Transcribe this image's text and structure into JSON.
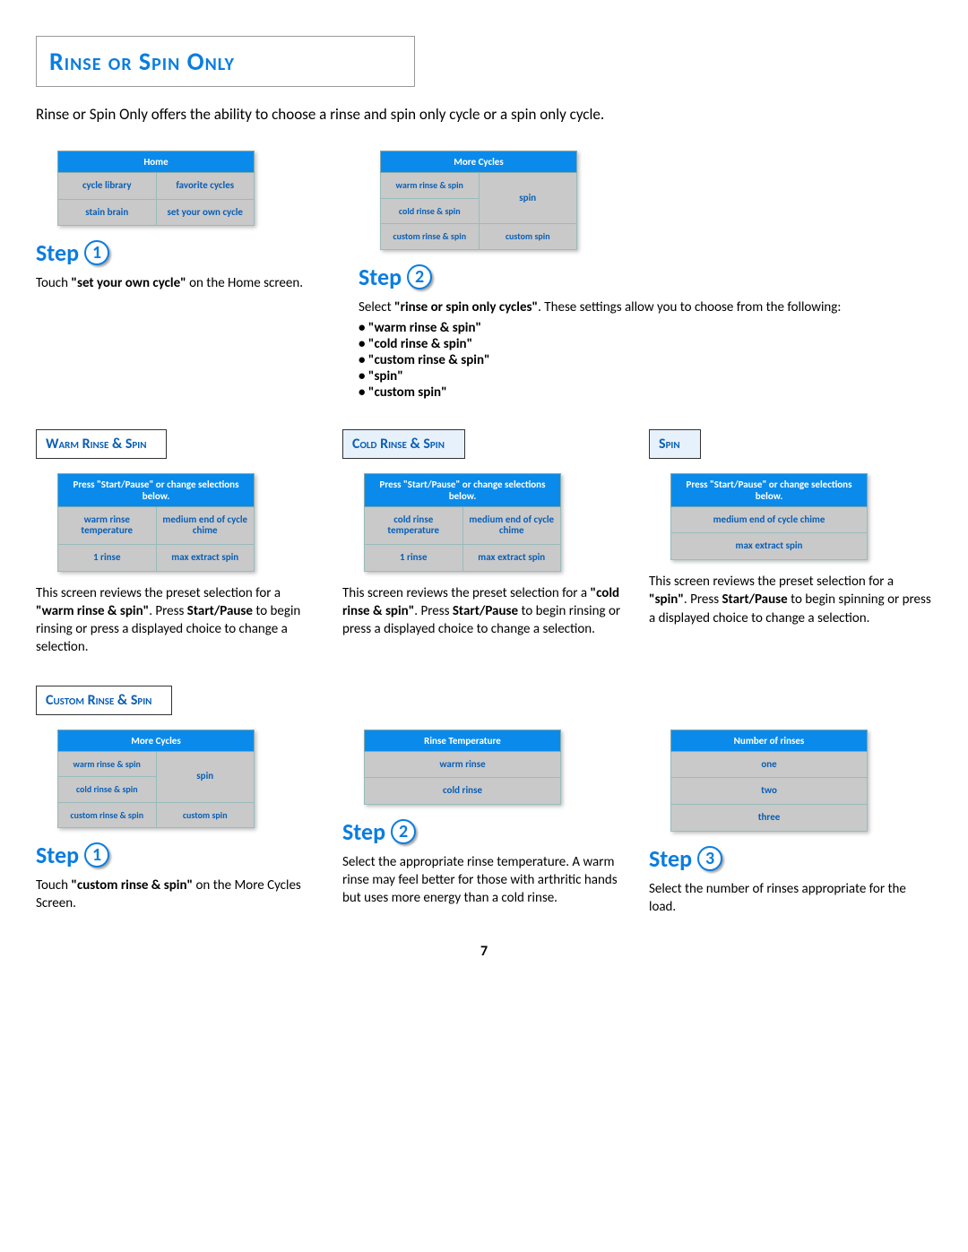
{
  "page": {
    "title": "Rinse or Spin Only",
    "intro": "Rinse or Spin Only offers the ability to choose a rinse and spin only cycle or a spin only cycle.",
    "pageNumber": "7"
  },
  "topPanels": {
    "home": {
      "header": "Home",
      "cells": [
        "cycle library",
        "favorite cycles",
        "stain brain",
        "set your own cycle"
      ]
    },
    "moreCycles": {
      "header": "More Cycles",
      "leftCells": [
        "warm rinse & spin",
        "cold rinse & spin",
        "custom rinse & spin"
      ],
      "rightCells": [
        "spin",
        "custom spin"
      ]
    }
  },
  "step1Top": {
    "label": "Step",
    "num": "1",
    "text_a": "Touch ",
    "text_b": "\"set your own cycle\"",
    "text_c": " on the Home screen."
  },
  "step2Top": {
    "label": "Step",
    "num": "2",
    "lead_a": "Select ",
    "lead_b": "\"rinse or spin only cycles\"",
    "lead_c": ".  These settings allow you to choose from the following:",
    "options": [
      "\"warm rinse & spin\"",
      "\"cold rinse & spin\"",
      "\"custom rinse & spin\"",
      " \"spin\"",
      "\"custom spin\""
    ]
  },
  "subHeads": {
    "warm": "Warm Rinse & Spin",
    "cold": "Cold Rinse & Spin",
    "spin": "Spin",
    "custom": "Custom Rinse & Spin"
  },
  "presetPanels": {
    "hint": "Press \"Start/Pause\" or change selections below.",
    "warm": {
      "r1a": "warm rinse temperature",
      "r1b": "medium end of cycle chime",
      "r2a": "1 rinse",
      "r2b": "max extract spin"
    },
    "cold": {
      "r1a": "cold rinse temperature",
      "r1b": "medium end of cycle chime",
      "r2a": "1 rinse",
      "r2b": "max extract spin"
    },
    "spin": {
      "r1": "medium end of cycle chime",
      "r2": "max extract spin"
    }
  },
  "presetText": {
    "warm": "This screen reviews the preset selection for a \"warm rinse & spin\". Press Start/Pause to begin rinsing or press a displayed choice to change a selection.",
    "cold": "This screen reviews the preset selection for a \"cold rinse & spin\".  Press Start/Pause to begin rinsing or press a displayed choice to change a selection.",
    "spin": "This screen reviews the preset selection for a \"spin\".  Press Start/Pause to begin spinning or press a displayed choice to change a selection."
  },
  "bottomPanels": {
    "moreCycles": {
      "header": "More Cycles",
      "leftCells": [
        "warm rinse & spin",
        "cold rinse & spin",
        "custom rinse & spin"
      ],
      "rightCells": [
        "spin",
        "custom spin"
      ]
    },
    "rinseTemp": {
      "header": "Rinse Temperature",
      "cells": [
        "warm rinse",
        "cold rinse"
      ]
    },
    "numRinses": {
      "header": "Number of rinses",
      "cells": [
        "one",
        "two",
        "three"
      ]
    }
  },
  "bottomSteps": {
    "s1": {
      "label": "Step",
      "num": "1",
      "a": "Touch ",
      "b": "\"custom rinse & spin\"",
      "c": " on the More Cycles Screen."
    },
    "s2": {
      "label": "Step",
      "num": "2",
      "t": "Select the appropriate rinse temperature. A warm rinse may feel better for those with arthritic hands but uses more energy than a cold rinse."
    },
    "s3": {
      "label": "Step",
      "num": "3",
      "t": "Select the number of rinses appropriate for the load."
    }
  }
}
